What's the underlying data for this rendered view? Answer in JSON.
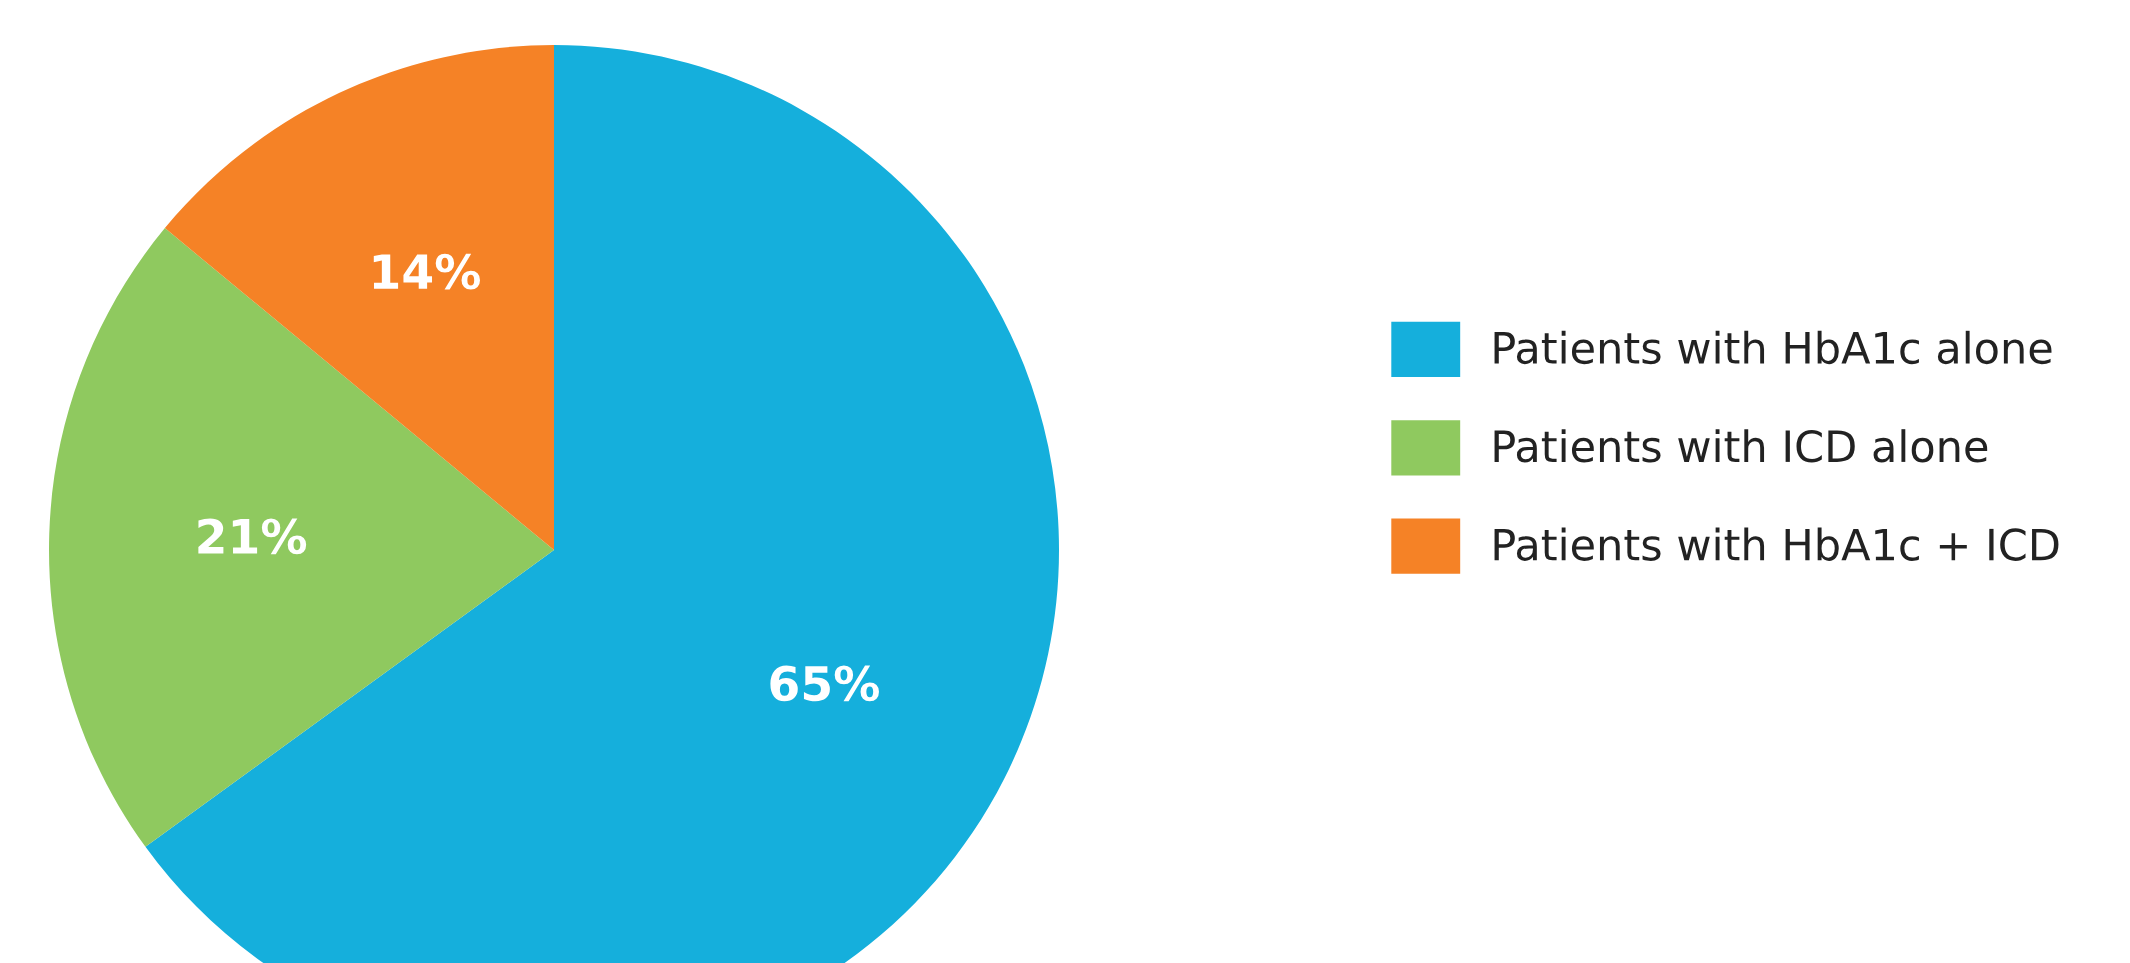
{
  "chart_data": {
    "type": "pie",
    "categories": [
      "Patients with HbA1c alone",
      "Patients with ICD alone",
      "Patients with HbA1c + ICD"
    ],
    "values": [
      65,
      21,
      14
    ],
    "colors": [
      "#15afdc",
      "#8fc95f",
      "#f58226"
    ],
    "value_labels": [
      "65%",
      "21%",
      "14%"
    ],
    "legend": "right"
  }
}
